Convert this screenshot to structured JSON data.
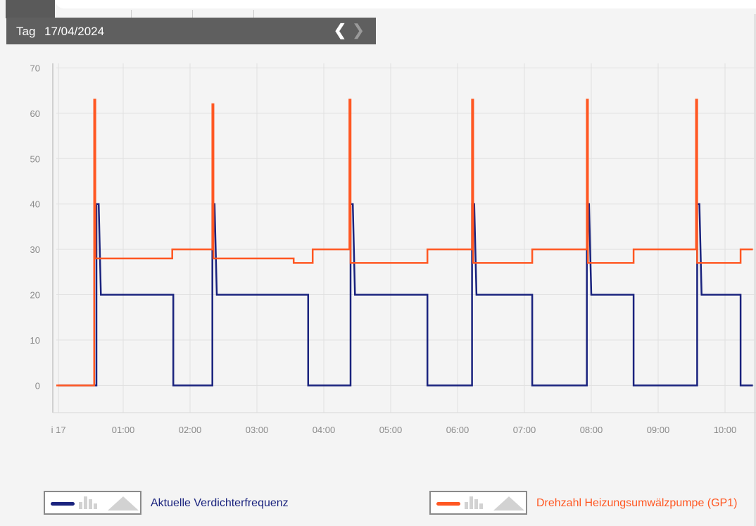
{
  "toolbar": {
    "period_label": "Tag",
    "date": "17/04/2024",
    "prev_icon": "chevron-left-icon",
    "next_icon": "chevron-right-icon"
  },
  "colors": {
    "series_compressor": "#1a237e",
    "series_pump": "#ff5722",
    "grid": "#e0e0e0",
    "axis_text": "#8a8a8a"
  },
  "chart_data": {
    "type": "line",
    "step": true,
    "title": "",
    "xlabel": "",
    "ylabel": "",
    "ylim": [
      -6,
      71
    ],
    "yticks": [
      0,
      10,
      20,
      30,
      40,
      50,
      60,
      70
    ],
    "xlim": [
      "00:00",
      "10:25"
    ],
    "xticks": [
      {
        "t": "00:02",
        "label": "i 17"
      },
      {
        "t": "01:00",
        "label": "01:00"
      },
      {
        "t": "02:00",
        "label": "02:00"
      },
      {
        "t": "03:00",
        "label": "03:00"
      },
      {
        "t": "04:00",
        "label": "04:00"
      },
      {
        "t": "05:00",
        "label": "05:00"
      },
      {
        "t": "06:00",
        "label": "06:00"
      },
      {
        "t": "07:00",
        "label": "07:00"
      },
      {
        "t": "08:00",
        "label": "08:00"
      },
      {
        "t": "09:00",
        "label": "09:00"
      },
      {
        "t": "10:00",
        "label": "10:00"
      }
    ],
    "grid": true,
    "legend_position": "bottom",
    "series": [
      {
        "name": "Aktuelle Verdichterfrequenz",
        "color": "#1a237e",
        "points": [
          [
            "00:02",
            0
          ],
          [
            "00:36",
            0
          ],
          [
            "00:36",
            40
          ],
          [
            "00:38",
            40
          ],
          [
            "00:40",
            20
          ],
          [
            "01:45",
            20
          ],
          [
            "01:45",
            0
          ],
          [
            "02:20",
            0
          ],
          [
            "02:20",
            40
          ],
          [
            "02:22",
            40
          ],
          [
            "02:24",
            20
          ],
          [
            "03:46",
            20
          ],
          [
            "03:46",
            0
          ],
          [
            "04:24",
            0
          ],
          [
            "04:24",
            40
          ],
          [
            "04:26",
            40
          ],
          [
            "04:28",
            20
          ],
          [
            "05:33",
            20
          ],
          [
            "05:33",
            0
          ],
          [
            "06:13",
            0
          ],
          [
            "06:13",
            40
          ],
          [
            "06:15",
            40
          ],
          [
            "06:17",
            20
          ],
          [
            "07:07",
            20
          ],
          [
            "07:07",
            0
          ],
          [
            "07:56",
            0
          ],
          [
            "07:56",
            40
          ],
          [
            "07:58",
            40
          ],
          [
            "08:00",
            20
          ],
          [
            "08:38",
            20
          ],
          [
            "08:38",
            0
          ],
          [
            "09:35",
            0
          ],
          [
            "09:35",
            40
          ],
          [
            "09:37",
            40
          ],
          [
            "09:39",
            20
          ],
          [
            "10:14",
            20
          ],
          [
            "10:14",
            0
          ],
          [
            "10:25",
            0
          ]
        ]
      },
      {
        "name": "Drehzahl Heizungsumwälzpumpe (GP1)",
        "color": "#ff5722",
        "points": [
          [
            "00:00",
            0
          ],
          [
            "00:34",
            0
          ],
          [
            "00:34",
            63
          ],
          [
            "00:35",
            63
          ],
          [
            "00:35",
            28
          ],
          [
            "01:44",
            28
          ],
          [
            "01:44",
            30
          ],
          [
            "02:20",
            30
          ],
          [
            "02:20",
            62
          ],
          [
            "02:21",
            62
          ],
          [
            "02:21",
            28
          ],
          [
            "03:33",
            28
          ],
          [
            "03:33",
            27
          ],
          [
            "03:50",
            27
          ],
          [
            "03:50",
            30
          ],
          [
            "04:23",
            30
          ],
          [
            "04:23",
            63
          ],
          [
            "04:24",
            63
          ],
          [
            "04:24",
            27
          ],
          [
            "05:33",
            27
          ],
          [
            "05:33",
            30
          ],
          [
            "06:13",
            30
          ],
          [
            "06:13",
            63
          ],
          [
            "06:14",
            63
          ],
          [
            "06:14",
            27
          ],
          [
            "07:07",
            27
          ],
          [
            "07:07",
            30
          ],
          [
            "07:56",
            30
          ],
          [
            "07:56",
            63
          ],
          [
            "07:57",
            63
          ],
          [
            "07:57",
            27
          ],
          [
            "08:38",
            27
          ],
          [
            "08:38",
            30
          ],
          [
            "09:34",
            30
          ],
          [
            "09:34",
            63
          ],
          [
            "09:35",
            63
          ],
          [
            "09:35",
            27
          ],
          [
            "10:14",
            27
          ],
          [
            "10:14",
            30
          ],
          [
            "10:25",
            30
          ]
        ]
      }
    ]
  },
  "legend": [
    {
      "label": "Aktuelle Verdichterfrequenz",
      "color": "#1a237e",
      "icons": [
        "line-icon",
        "bar-chart-icon",
        "area-chart-icon"
      ]
    },
    {
      "label": "Drehzahl Heizungsumwälzpumpe (GP1)",
      "color": "#ff5722",
      "icons": [
        "line-icon",
        "bar-chart-icon",
        "area-chart-icon"
      ]
    }
  ]
}
